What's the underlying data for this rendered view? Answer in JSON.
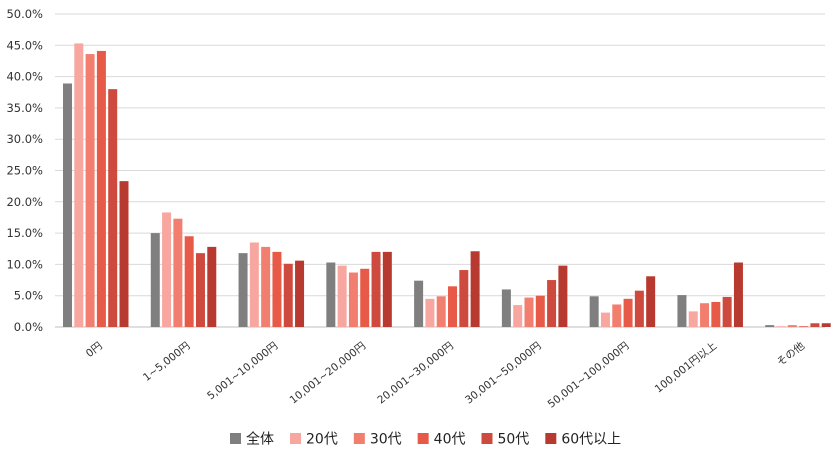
{
  "chart_data": {
    "type": "bar",
    "title": "",
    "xlabel": "",
    "ylabel": "",
    "ylim": [
      0,
      50
    ],
    "y_ticks": [
      "0.0%",
      "5.0%",
      "10.0%",
      "15.0%",
      "20.0%",
      "25.0%",
      "30.0%",
      "35.0%",
      "40.0%",
      "45.0%",
      "50.0%"
    ],
    "grid": true,
    "legend_position": "bottom",
    "categories": [
      "0円",
      "1~5,000円",
      "5,001~10,000円",
      "10,001~20,000円",
      "20,001~30,000円",
      "30,001~50,000円",
      "50,001~100,000円",
      "100,001円以上",
      "その他"
    ],
    "series": [
      {
        "name": "全体",
        "color": "#7f7f7f",
        "values": [
          38.9,
          15.0,
          11.8,
          10.3,
          7.4,
          6.0,
          4.9,
          5.1,
          0.3
        ]
      },
      {
        "name": "20代",
        "color": "#f8a7a0",
        "values": [
          45.3,
          18.3,
          13.5,
          9.8,
          4.5,
          3.5,
          2.3,
          2.5,
          0.1
        ]
      },
      {
        "name": "30代",
        "color": "#f27e6f",
        "values": [
          43.6,
          17.3,
          12.8,
          8.7,
          4.9,
          4.7,
          3.6,
          3.8,
          0.3
        ]
      },
      {
        "name": "40代",
        "color": "#e85a48",
        "values": [
          44.1,
          14.5,
          12.0,
          9.3,
          6.5,
          5.0,
          4.5,
          4.0,
          0.0
        ]
      },
      {
        "name": "50代",
        "color": "#cf4a3e",
        "values": [
          38.0,
          11.8,
          10.1,
          12.0,
          9.1,
          7.5,
          5.8,
          4.8,
          0.6
        ]
      },
      {
        "name": "60代以上",
        "color": "#b8392f",
        "values": [
          23.3,
          12.8,
          10.6,
          12.0,
          12.1,
          9.8,
          8.1,
          10.3,
          0.6
        ]
      }
    ]
  }
}
